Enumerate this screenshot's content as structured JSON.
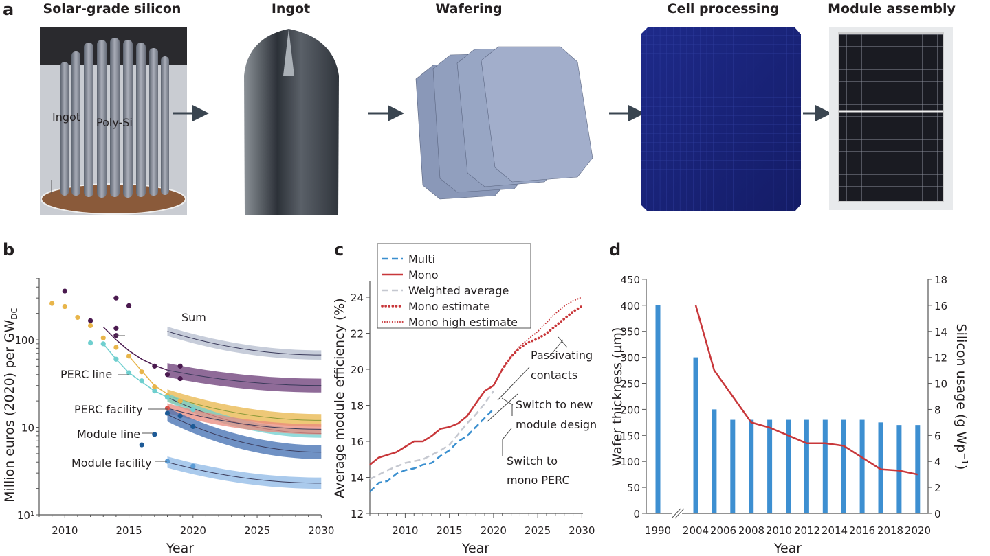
{
  "panel_a": {
    "label": "a",
    "steps": [
      "Solar-grade silicon",
      "Ingot",
      "Wafering",
      "Cell processing",
      "Module assembly"
    ]
  },
  "chart_data": [
    {
      "panel": "b",
      "type": "scatter",
      "xlabel": "Year",
      "ylabel": "Million euros (2020) per GW",
      "ylabel_sub": "DC",
      "xlim": [
        2008,
        2030
      ],
      "ylim": [
        1,
        500
      ],
      "yscale": "log",
      "xticks": [
        "2010",
        "2015",
        "2020",
        "2025",
        "2030"
      ],
      "yticks": [
        {
          "value": 1,
          "label": "10¹"
        },
        {
          "value": 10,
          "label": "10"
        },
        {
          "value": 100,
          "label": "100"
        }
      ],
      "sum_label": "Sum",
      "series": [
        {
          "name": "Ingot",
          "color": "#e8b54a",
          "points": [
            [
              2009,
              260
            ],
            [
              2010,
              240
            ],
            [
              2011,
              180
            ],
            [
              2012,
              145
            ],
            [
              2013,
              105
            ],
            [
              2014,
              82
            ],
            [
              2015,
              65
            ],
            [
              2016,
              43
            ],
            [
              2017,
              29
            ],
            [
              2018,
              23
            ],
            [
              2019,
              20
            ]
          ],
          "fit": [
            [
              2015,
              65
            ],
            [
              2016,
              44
            ],
            [
              2017,
              30
            ],
            [
              2018,
              24
            ]
          ],
          "band": {
            "from": 2018,
            "to": 2030,
            "start": 23,
            "end": 12,
            "spread": 0.18
          }
        },
        {
          "name": "Poly-Si",
          "color": "#4a1a4f",
          "points": [
            [
              2010,
              360
            ],
            [
              2012,
              165
            ],
            [
              2014,
              300
            ],
            [
              2014,
              135
            ],
            [
              2014,
              112
            ],
            [
              2015,
              245
            ],
            [
              2017,
              50
            ],
            [
              2018,
              40
            ],
            [
              2019,
              50
            ],
            [
              2019,
              36
            ]
          ],
          "fit": [
            [
              2013,
              140
            ],
            [
              2014,
              100
            ],
            [
              2015,
              75
            ],
            [
              2016,
              60
            ],
            [
              2017,
              51
            ],
            [
              2018,
              45
            ]
          ],
          "band": {
            "from": 2018,
            "to": 2030,
            "start": 45,
            "end": 30,
            "spread": 0.2
          },
          "band_color": "#6a3a75"
        },
        {
          "name": "PERC line",
          "color": "#6fcfcf",
          "points": [
            [
              2012,
              92
            ],
            [
              2013,
              90
            ],
            [
              2014,
              60
            ],
            [
              2015,
              42
            ],
            [
              2016,
              34
            ],
            [
              2017,
              26
            ],
            [
              2018,
              22
            ],
            [
              2020,
              16
            ]
          ],
          "fit": [
            [
              2013,
              90
            ],
            [
              2014,
              60
            ],
            [
              2015,
              42
            ],
            [
              2016,
              33
            ],
            [
              2017,
              26
            ],
            [
              2018,
              22
            ]
          ],
          "band": {
            "from": 2018,
            "to": 2030,
            "start": 22,
            "end": 8.5,
            "spread": 0.12
          }
        },
        {
          "name": "PERC facility",
          "color": "#d9534a",
          "points": [
            [
              2018,
              16.5
            ]
          ],
          "band": {
            "from": 2018,
            "to": 2030,
            "start": 16.5,
            "end": 9.5,
            "spread": 0.14
          },
          "band_color": "#e98a7c"
        },
        {
          "name": "Module line",
          "color": "#1d5a96",
          "points": [
            [
              2016,
              6.3
            ],
            [
              2017,
              8.3
            ],
            [
              2018,
              14.5
            ],
            [
              2019,
              13.5
            ],
            [
              2020,
              10.2
            ]
          ],
          "band": {
            "from": 2018,
            "to": 2030,
            "start": 14,
            "end": 5.2,
            "spread": 0.2
          },
          "band_color": "#3f6cb0"
        },
        {
          "name": "Module facility",
          "color": "#5a9bd5",
          "points": [
            [
              2018,
              4.1
            ],
            [
              2020,
              3.6
            ]
          ],
          "band": {
            "from": 2018,
            "to": 2030,
            "start": 4,
            "end": 2.3,
            "spread": 0.16
          },
          "band_color": "#8db8e6"
        },
        {
          "name": "Sum",
          "color": "#4a5570",
          "points": [],
          "band": {
            "from": 2018,
            "to": 2030,
            "start": 125,
            "end": 67,
            "spread": 0.13
          },
          "band_color": "#b4bccd"
        }
      ]
    },
    {
      "panel": "c",
      "type": "line",
      "xlabel": "Year",
      "ylabel": "Average module efficiency (%)",
      "xlim": [
        2006,
        2030.5
      ],
      "ylim": [
        12,
        25
      ],
      "xticks": [
        "2010",
        "2015",
        "2020",
        "2025",
        "2030"
      ],
      "yticks": [
        "12",
        "14",
        "16",
        "18",
        "20",
        "22",
        "24"
      ],
      "legend_position": "top-left",
      "series": [
        {
          "name": "Multi",
          "color": "#3a8fcf",
          "style": "dashed",
          "x": [
            2006,
            2007,
            2008,
            2009,
            2010,
            2011,
            2012,
            2013,
            2014,
            2015,
            2016,
            2017,
            2018,
            2019,
            2020
          ],
          "y": [
            13.2,
            13.7,
            13.8,
            14.2,
            14.4,
            14.5,
            14.7,
            14.8,
            15.2,
            15.5,
            16.0,
            16.3,
            16.8,
            17.3,
            17.8
          ]
        },
        {
          "name": "Mono",
          "color": "#c8373a",
          "style": "solid",
          "x": [
            2006,
            2007,
            2008,
            2009,
            2010,
            2011,
            2012,
            2013,
            2014,
            2015,
            2016,
            2017,
            2018,
            2019,
            2020,
            2021
          ],
          "y": [
            14.7,
            15.1,
            15.25,
            15.4,
            15.7,
            16.0,
            16.0,
            16.3,
            16.7,
            16.8,
            17.0,
            17.4,
            18.1,
            18.8,
            19.1,
            20.0
          ]
        },
        {
          "name": "Weighted average",
          "color": "#c5c8d0",
          "style": "dashed",
          "x": [
            2006,
            2008,
            2010,
            2012,
            2014,
            2015,
            2016,
            2017,
            2018,
            2019,
            2020
          ],
          "y": [
            13.9,
            14.4,
            14.8,
            15.0,
            15.5,
            15.8,
            16.4,
            17.0,
            17.5,
            18.1,
            18.8
          ]
        },
        {
          "name": "Mono estimate",
          "color": "#c8373a",
          "style": "dotted-heavy",
          "x": [
            2021,
            2022,
            2023,
            2024,
            2025,
            2026,
            2027,
            2028,
            2029,
            2030
          ],
          "y": [
            20.0,
            20.7,
            21.2,
            21.5,
            21.7,
            22.0,
            22.4,
            22.8,
            23.2,
            23.5
          ]
        },
        {
          "name": "Mono high estimate",
          "color": "#c8373a",
          "style": "dotted",
          "x": [
            2021,
            2022,
            2023,
            2024,
            2025,
            2026,
            2027,
            2028,
            2029,
            2030
          ],
          "y": [
            20.0,
            20.7,
            21.3,
            21.7,
            22.1,
            22.6,
            23.1,
            23.5,
            23.8,
            24.0
          ]
        }
      ],
      "annotations": [
        "Passivating",
        "contacts",
        "Switch to new",
        "module design",
        "Switch to",
        "mono PERC"
      ]
    },
    {
      "panel": "d",
      "type": "bar",
      "xlabel": "Year",
      "ylabel_left": "Wafer thickness (µm)",
      "ylabel_right": "Silicon usage (g Wp",
      "ylabel_right_sup": "−1",
      "ylabel_right_close": ")",
      "ylim_left": [
        0,
        450
      ],
      "ylim_right": [
        0,
        18
      ],
      "yticks_left": [
        "0",
        "50",
        "100",
        "150",
        "200",
        "250",
        "300",
        "350",
        "400",
        "450"
      ],
      "yticks_right": [
        "0",
        "2",
        "4",
        "6",
        "8",
        "10",
        "12",
        "14",
        "16",
        "18"
      ],
      "xticks": [
        "1990",
        "2004",
        "2006",
        "2008",
        "2010",
        "2012",
        "2014",
        "2016",
        "2018",
        "2020"
      ],
      "axis_break": true,
      "bar_color": "#3d8fd1",
      "line_color": "#c8373a",
      "bars": [
        400,
        300,
        200,
        180,
        180,
        180,
        180,
        180,
        180,
        180,
        180,
        175,
        170,
        170
      ],
      "line": [
        null,
        16,
        11,
        9,
        7,
        6.6,
        6.0,
        5.4,
        5.4,
        5.2,
        4.3,
        3.4,
        3.3,
        3.0
      ]
    }
  ]
}
